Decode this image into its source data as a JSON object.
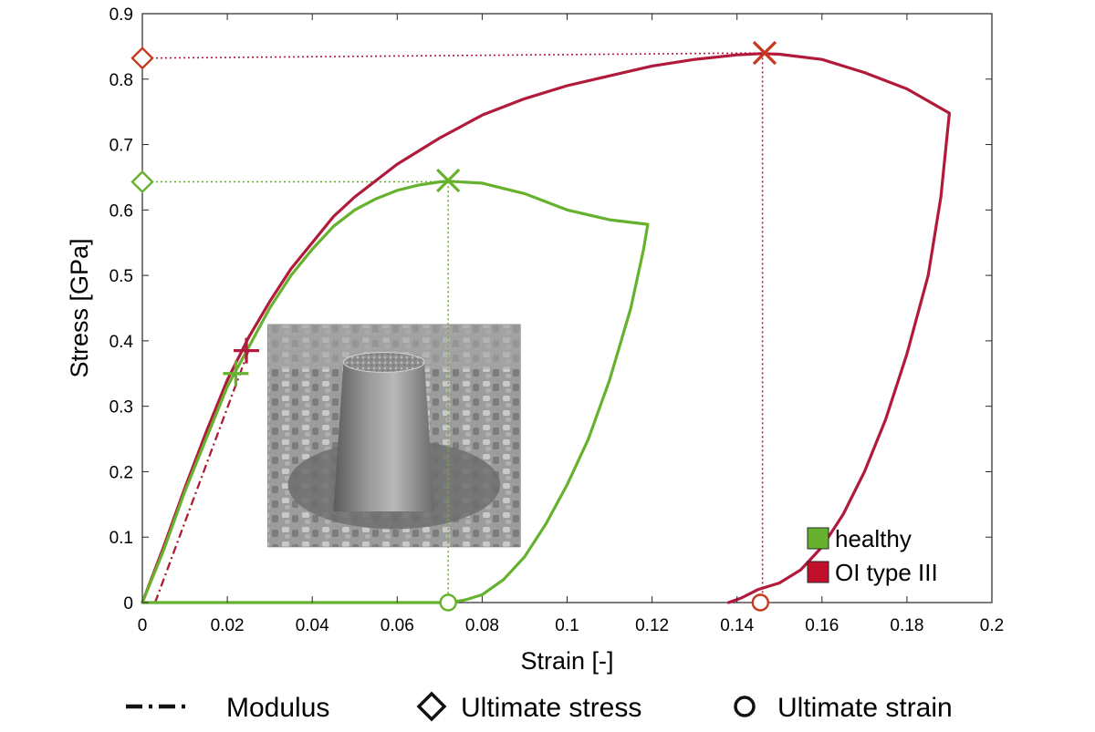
{
  "chart_data": {
    "type": "line",
    "xlabel": "Strain [-]",
    "ylabel": "Stress [GPa]",
    "xlim": [
      0,
      0.2
    ],
    "ylim": [
      0,
      0.9
    ],
    "x_ticks": [
      0,
      0.02,
      0.04,
      0.06,
      0.08,
      0.1,
      0.12,
      0.14,
      0.16,
      0.18,
      0.2
    ],
    "x_tick_labels": [
      "0",
      "0.02",
      "0.04",
      "0.06",
      "0.08",
      "0.1",
      "0.12",
      "0.14",
      "0.16",
      "0.18",
      "0.2"
    ],
    "y_ticks": [
      0,
      0.1,
      0.2,
      0.3,
      0.4,
      0.5,
      0.6,
      0.7,
      0.8,
      0.9
    ],
    "y_tick_labels": [
      "0",
      "0.1",
      "0.2",
      "0.3",
      "0.4",
      "0.5",
      "0.6",
      "0.7",
      "0.8",
      "0.9"
    ],
    "grid": false,
    "legend_position": "bottom-right",
    "series": [
      {
        "name": "healthy",
        "color": "#66b22e",
        "x": [
          0,
          0.005,
          0.01,
          0.015,
          0.02,
          0.025,
          0.03,
          0.035,
          0.04,
          0.045,
          0.05,
          0.055,
          0.06,
          0.065,
          0.07,
          0.072,
          0.08,
          0.09,
          0.1,
          0.11,
          0.119,
          0.118,
          0.115,
          0.11,
          0.105,
          0.1,
          0.095,
          0.09,
          0.085,
          0.08,
          0.076,
          0.073,
          0.07,
          0.04,
          0.01,
          0
        ],
        "y": [
          0,
          0.08,
          0.17,
          0.25,
          0.33,
          0.39,
          0.45,
          0.5,
          0.54,
          0.575,
          0.6,
          0.617,
          0.63,
          0.638,
          0.643,
          0.644,
          0.641,
          0.625,
          0.6,
          0.585,
          0.578,
          0.54,
          0.45,
          0.34,
          0.25,
          0.18,
          0.12,
          0.07,
          0.035,
          0.012,
          0.004,
          0.001,
          0,
          0,
          0,
          0
        ]
      },
      {
        "name": "OI type III",
        "color": "#b21a3c",
        "x": [
          0,
          0.005,
          0.01,
          0.015,
          0.02,
          0.025,
          0.03,
          0.035,
          0.04,
          0.045,
          0.05,
          0.06,
          0.07,
          0.08,
          0.09,
          0.1,
          0.11,
          0.12,
          0.13,
          0.14,
          0.146,
          0.15,
          0.16,
          0.17,
          0.18,
          0.19,
          0.188,
          0.185,
          0.18,
          0.175,
          0.17,
          0.165,
          0.16,
          0.155,
          0.15,
          0.145,
          0.141,
          0.138
        ],
        "y": [
          0,
          0.085,
          0.175,
          0.26,
          0.34,
          0.405,
          0.46,
          0.51,
          0.55,
          0.59,
          0.62,
          0.67,
          0.71,
          0.745,
          0.77,
          0.79,
          0.805,
          0.82,
          0.83,
          0.837,
          0.839,
          0.838,
          0.83,
          0.81,
          0.785,
          0.748,
          0.62,
          0.5,
          0.38,
          0.28,
          0.2,
          0.135,
          0.085,
          0.05,
          0.03,
          0.02,
          0.007,
          0
        ]
      }
    ],
    "modulus_lines": [
      {
        "series": "healthy",
        "color": "#66b22e",
        "x": [
          0.003,
          0.023
        ],
        "y": [
          0,
          0.35
        ]
      },
      {
        "series": "OI type III",
        "color": "#b21a3c",
        "x": [
          0.003,
          0.025
        ],
        "y": [
          0,
          0.385
        ]
      }
    ],
    "markers": [
      {
        "series": "healthy",
        "kind": "yield-plus",
        "color": "#66b22e",
        "x": 0.022,
        "y": 0.35
      },
      {
        "series": "OI type III",
        "kind": "yield-plus",
        "color": "#b21a3c",
        "x": 0.0245,
        "y": 0.385
      },
      {
        "series": "healthy",
        "kind": "ultimate-x",
        "color": "#66b22e",
        "x": 0.072,
        "y": 0.645
      },
      {
        "series": "OI type III",
        "kind": "ultimate-x",
        "color": "#c8381e",
        "x": 0.1465,
        "y": 0.84
      },
      {
        "series": "healthy",
        "kind": "ultimate-stress-diamond",
        "color": "#66b22e",
        "x": 0,
        "y": 0.643
      },
      {
        "series": "OI type III",
        "kind": "ultimate-stress-diamond",
        "color": "#c8381e",
        "x": 0,
        "y": 0.832
      },
      {
        "series": "healthy",
        "kind": "ultimate-strain-circle",
        "color": "#66b22e",
        "x": 0.072,
        "y": 0
      },
      {
        "series": "OI type III",
        "kind": "ultimate-strain-circle",
        "color": "#c8381e",
        "x": 0.1455,
        "y": 0
      }
    ],
    "guides": [
      {
        "series": "healthy",
        "color": "#66b22e",
        "from": [
          0,
          0.643
        ],
        "corner": [
          0.072,
          0.643
        ],
        "to": [
          0.072,
          0
        ]
      },
      {
        "series": "OI type III",
        "color": "#b21a3c",
        "from": [
          0,
          0.832
        ],
        "corner": [
          0.146,
          0.84
        ],
        "to": [
          0.146,
          0
        ]
      }
    ],
    "legend": [
      {
        "label": "healthy",
        "color": "#66b22e"
      },
      {
        "label": "OI type III",
        "color": "#c0102a"
      }
    ],
    "inset_image": {
      "x": [
        0.0295,
        0.089
      ],
      "y": [
        0.085,
        0.425
      ]
    },
    "key": {
      "modulus": "Modulus",
      "ultimate_stress": "Ultimate stress",
      "ultimate_strain": "Ultimate strain"
    }
  }
}
